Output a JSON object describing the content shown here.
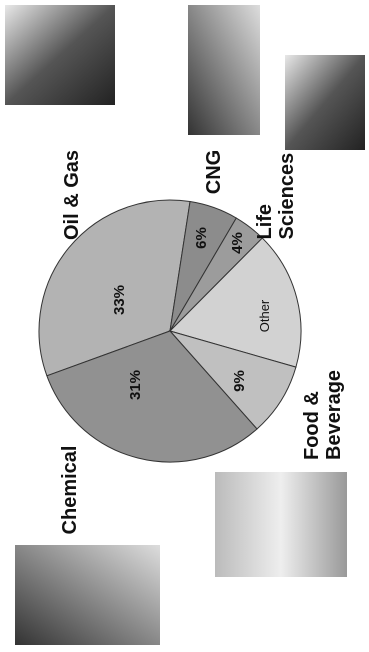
{
  "chart_data": {
    "type": "pie",
    "categories": [
      "Oil & Gas",
      "CNG",
      "Life Sciences",
      "Other",
      "Food & Beverage",
      "Chemical"
    ],
    "values": [
      33,
      6,
      4,
      17,
      9,
      31
    ],
    "value_labels": [
      "33%",
      "6%",
      "4%",
      null,
      "9%",
      "31%"
    ],
    "colors": [
      "#b3b3b3",
      "#8c8c8c",
      "#9c9c9c",
      "#d2d2d2",
      "#c0c0c0",
      "#919191"
    ]
  }
}
